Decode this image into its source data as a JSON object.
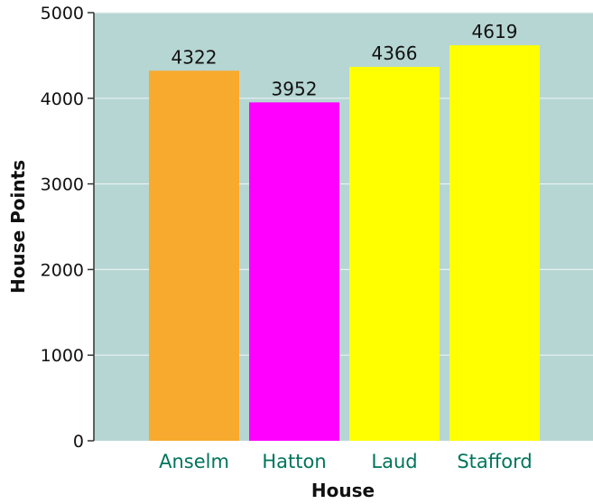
{
  "chart_data": {
    "type": "bar",
    "title": "",
    "xlabel": "House",
    "ylabel": "House Points",
    "categories": [
      "Anselm",
      "Hatton",
      "Laud",
      "Stafford"
    ],
    "values": [
      4322,
      3952,
      4366,
      4619
    ],
    "value_labels": [
      "4322",
      "3952",
      "4366",
      "4619"
    ],
    "bar_colors": [
      "#F8AA2E",
      "#FF00FF",
      "#FFFF00",
      "#FFFF00"
    ],
    "ylim": [
      0,
      5000
    ],
    "yticks": [
      0,
      1000,
      2000,
      3000,
      4000,
      5000
    ],
    "ytick_labels": [
      "0",
      "1000",
      "2000",
      "3000",
      "4000",
      "5000"
    ],
    "grid": true,
    "background_color": "#B6D6D3",
    "category_label_color": "#00745C",
    "gridline_color": "#E8F2F1"
  }
}
